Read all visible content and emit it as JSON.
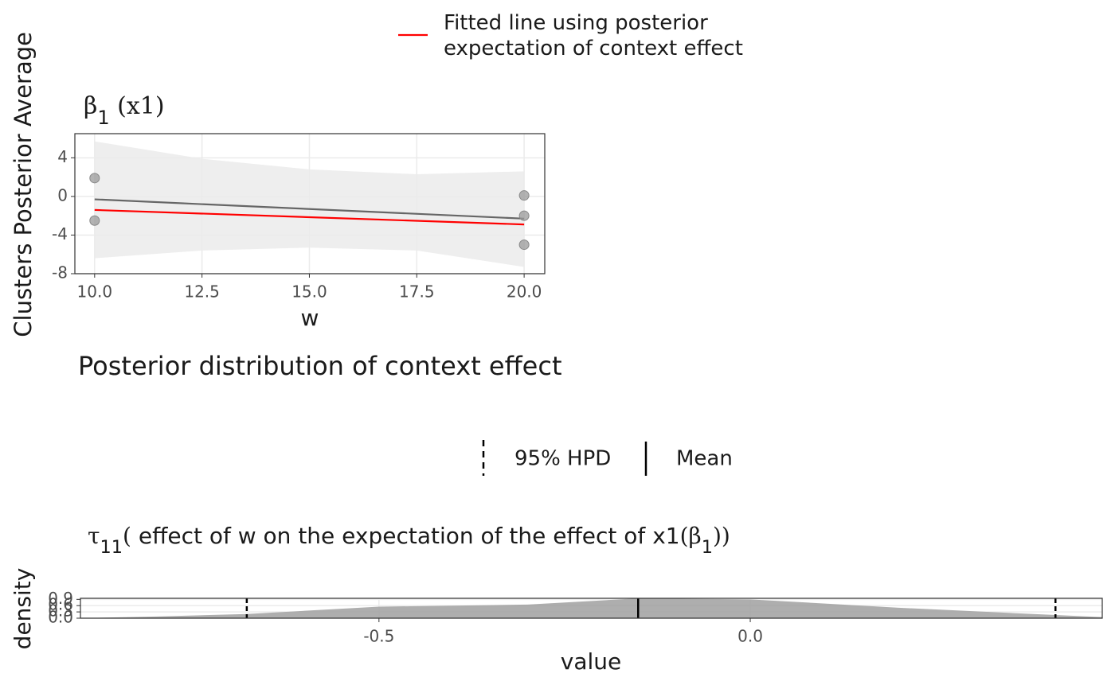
{
  "section_title": "Posterior distribution of context effect",
  "chart_data": [
    {
      "type": "scatter",
      "title_parts": [
        {
          "text": "β",
          "serif": true
        },
        {
          "text": "1",
          "sub": true
        },
        {
          "text": " (x1)",
          "serif": true
        }
      ],
      "ylabel": "Clusters Posterior Average",
      "xlabel": "w",
      "xlim": [
        9.54,
        20.48
      ],
      "ylim": [
        -8,
        6.5
      ],
      "xticks": [
        {
          "value": 10,
          "label": "10.0"
        },
        12.5,
        {
          "value": 15,
          "label": "15.0"
        },
        17.5,
        {
          "value": 20,
          "label": "20.0"
        }
      ],
      "yticks": [
        -8,
        -4,
        0,
        4
      ],
      "grid": true,
      "x": [
        10,
        10,
        20,
        20,
        20
      ],
      "y": [
        1.9,
        -2.5,
        0.1,
        -2.0,
        -5.0
      ],
      "point_color": "#999999",
      "ribbon": {
        "x": [
          10,
          12.5,
          15,
          17.5,
          20
        ],
        "upper": [
          5.7,
          3.9,
          2.8,
          2.3,
          2.6
        ],
        "lower": [
          -6.4,
          -5.6,
          -5.3,
          -5.6,
          -7.3
        ],
        "color": "#ebebeb"
      },
      "fit_line": {
        "x": [
          10,
          20
        ],
        "values": [
          -0.3,
          -2.3
        ],
        "color": "#666666"
      },
      "series": [
        {
          "name": "Fitted line using posterior\nexpectation of context effect",
          "color": "#ff0000",
          "x": [
            10,
            20
          ],
          "values": [
            -1.4,
            -2.9
          ]
        }
      ]
    },
    {
      "type": "density",
      "title_parts": [
        {
          "text": "τ",
          "serif": true
        },
        {
          "text": "11",
          "sub": true
        },
        {
          "text": "(",
          "serif": true
        },
        {
          "text": " effect of w on the expectation of the effect of x1"
        },
        {
          "text": "(β",
          "serif": true
        },
        {
          "text": "1",
          "sub": true
        },
        {
          "text": "))",
          "serif": true
        }
      ],
      "ylabel": "density",
      "xlabel": "value",
      "xlim": [
        -0.902,
        0.474
      ],
      "ylim": [
        0,
        0.95
      ],
      "xticks": [
        {
          "value": -0.5,
          "label": "-0.5"
        },
        {
          "value": 0,
          "label": "0.0"
        }
      ],
      "yticks": [
        {
          "value": 0,
          "label": "0.0"
        },
        {
          "value": 0.3,
          "label": "0.3"
        },
        {
          "value": 0.6,
          "label": "0.6"
        },
        {
          "value": 0.9,
          "label": "0.9"
        }
      ],
      "grid": true,
      "color": "#a0a0a0",
      "x": [
        -0.902,
        -0.8,
        -0.678,
        -0.5,
        -0.3,
        -0.15,
        0,
        0.2,
        0.411,
        0.474
      ],
      "values": [
        0.0,
        0.08,
        0.2,
        0.55,
        0.65,
        0.95,
        0.9,
        0.5,
        0.15,
        0.05
      ],
      "hpd": {
        "name": "95% HPD",
        "values": [
          -0.678,
          0.411
        ]
      },
      "mean": {
        "name": "Mean",
        "value": -0.151
      }
    }
  ]
}
